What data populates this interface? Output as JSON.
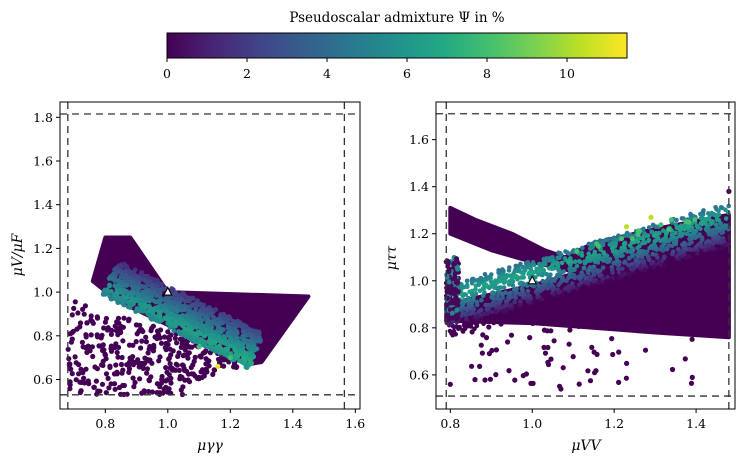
{
  "chart_data": {
    "colorbar": {
      "title": "Pseudoscalar admixture Ψ in %",
      "ticks": [
        0,
        2,
        4,
        6,
        8,
        10
      ],
      "range": [
        0,
        11.5
      ],
      "colormap": [
        "#440154",
        "#3b528b",
        "#21918c",
        "#5ec962",
        "#fde725"
      ]
    },
    "panels": [
      {
        "type": "scatter",
        "xlabel": "μγγ",
        "ylabel": "μV/μF",
        "xlim": [
          0.655,
          1.615
        ],
        "ylim": [
          0.465,
          1.87
        ],
        "xticks": [
          0.8,
          1.0,
          1.2,
          1.4,
          1.6
        ],
        "yticks": [
          0.6,
          0.8,
          1.0,
          1.2,
          1.4,
          1.6,
          1.8
        ],
        "bounds": {
          "x": [
            0.68,
            1.565
          ],
          "y": [
            0.53,
            1.815
          ]
        },
        "sm_point": {
          "x": 1.0,
          "y": 1.0
        },
        "regions": {
          "upper_band": [
            [
              0.76,
              1.05
            ],
            [
              0.8,
              1.25
            ],
            [
              0.88,
              1.25
            ],
            [
              1.0,
              1.0
            ],
            [
              1.45,
              0.98
            ],
            [
              1.3,
              0.68
            ],
            [
              1.26,
              0.67
            ],
            [
              0.84,
              0.96
            ]
          ],
          "gradient_band": [
            [
              0.8,
              1.02
            ],
            [
              1.27,
              0.68
            ]
          ],
          "lower_cloud": [
            [
              0.68,
              0.55
            ],
            [
              0.68,
              0.82
            ],
            [
              0.73,
              0.95
            ],
            [
              0.9,
              0.88
            ],
            [
              1.08,
              0.8
            ],
            [
              1.22,
              0.72
            ],
            [
              1.2,
              0.6
            ],
            [
              1.0,
              0.52
            ],
            [
              0.8,
              0.52
            ]
          ],
          "outliers": [
            [
              1.16,
              0.66
            ],
            [
              1.2,
              0.7
            ],
            [
              1.1,
              0.75
            ]
          ]
        }
      },
      {
        "type": "scatter",
        "xlabel": "μVV",
        "ylabel": "μττ",
        "xlim": [
          0.765,
          1.495
        ],
        "ylim": [
          0.455,
          1.76
        ],
        "xticks": [
          0.8,
          1.0,
          1.2,
          1.4
        ],
        "yticks": [
          0.6,
          0.8,
          1.0,
          1.2,
          1.4,
          1.6
        ],
        "bounds": {
          "x": [
            0.79,
            1.48
          ],
          "y": [
            0.51,
            1.71
          ]
        },
        "sm_point": {
          "x": 1.0,
          "y": 1.0
        },
        "regions": {
          "upper_arc": [
            [
              0.8,
              1.3
            ],
            [
              0.9,
              1.2
            ],
            [
              1.0,
              1.12
            ],
            [
              1.05,
              1.05
            ],
            [
              1.2,
              1.18
            ],
            [
              1.3,
              1.2
            ],
            [
              1.48,
              1.27
            ]
          ],
          "main_band": [
            [
              0.79,
              0.87
            ],
            [
              1.0,
              0.98
            ],
            [
              1.2,
              1.1
            ],
            [
              1.48,
              1.22
            ]
          ],
          "lower_region": [
            [
              0.79,
              0.85
            ],
            [
              1.0,
              0.82
            ],
            [
              1.3,
              0.78
            ],
            [
              1.48,
              0.76
            ]
          ],
          "outliers": [
            [
              1.29,
              1.27
            ],
            [
              1.23,
              1.23
            ],
            [
              1.48,
              1.38
            ],
            [
              0.8,
              0.56
            ],
            [
              1.07,
              0.54
            ]
          ]
        }
      }
    ]
  }
}
